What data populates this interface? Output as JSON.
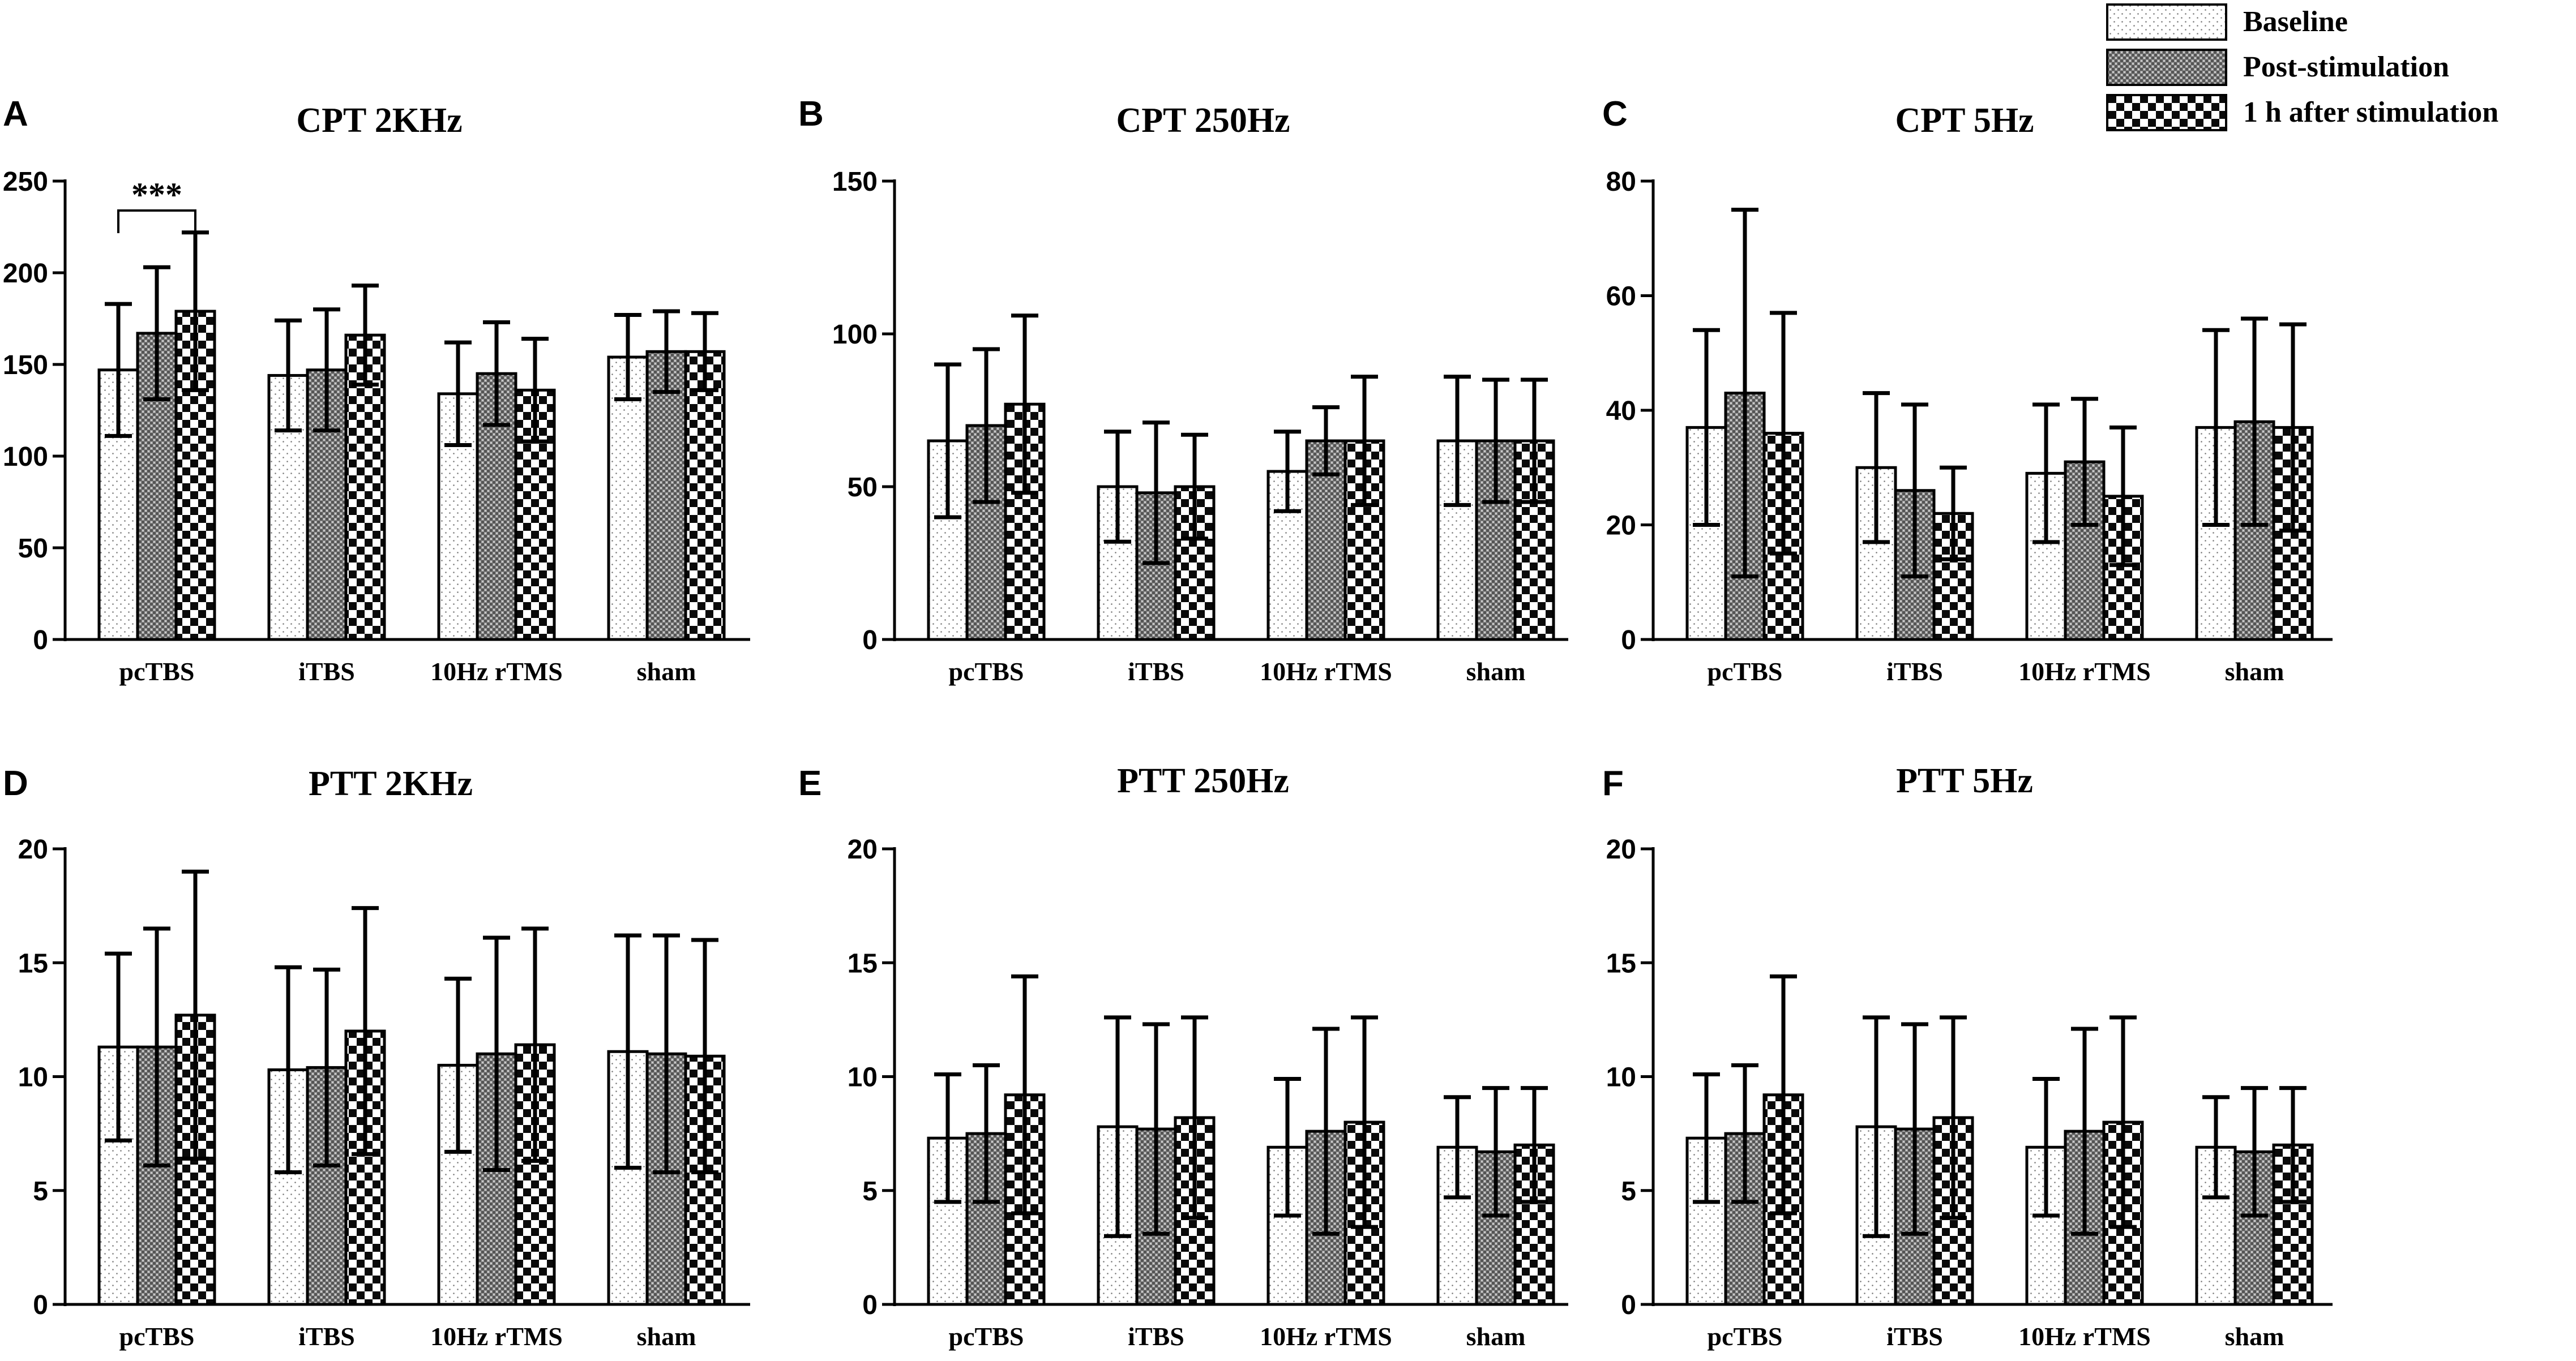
{
  "legend": [
    "Baseline",
    "Post-stimulation",
    "1 h after stimulation"
  ],
  "chart_data": [
    {
      "panel": "A",
      "title": "CPT 2KHz",
      "type": "bar",
      "categories": [
        "pcTBS",
        "iTBS",
        "10Hz rTMS",
        "sham"
      ],
      "yticks": [
        "0",
        "50",
        "100",
        "150",
        "200",
        "250"
      ],
      "ylim": [
        0,
        250
      ],
      "series": [
        {
          "name": "Baseline",
          "values": [
            147,
            144,
            134,
            154
          ],
          "errors": [
            36,
            30,
            28,
            23
          ]
        },
        {
          "name": "Post-stimulation",
          "values": [
            167,
            147,
            145,
            157
          ],
          "errors": [
            36,
            33,
            28,
            22
          ]
        },
        {
          "name": "1 h after stimulation",
          "values": [
            179,
            166,
            136,
            157
          ],
          "errors": [
            43,
            27,
            28,
            21
          ]
        }
      ],
      "annotation": {
        "label": "***",
        "between": "pcTBS Baseline vs 1 h after stimulation"
      }
    },
    {
      "panel": "B",
      "title": "CPT 250Hz",
      "type": "bar",
      "categories": [
        "pcTBS",
        "iTBS",
        "10Hz rTMS",
        "sham"
      ],
      "yticks": [
        "0",
        "50",
        "100",
        "150"
      ],
      "ylim": [
        0,
        150
      ],
      "series": [
        {
          "name": "Baseline",
          "values": [
            65,
            50,
            55,
            65
          ],
          "errors": [
            25,
            18,
            13,
            21
          ]
        },
        {
          "name": "Post-stimulation",
          "values": [
            70,
            48,
            65,
            65
          ],
          "errors": [
            25,
            23,
            11,
            20
          ]
        },
        {
          "name": "1 h after stimulation",
          "values": [
            77,
            50,
            65,
            65
          ],
          "errors": [
            29,
            17,
            21,
            20
          ]
        }
      ]
    },
    {
      "panel": "C",
      "title": "CPT 5Hz",
      "type": "bar",
      "categories": [
        "pcTBS",
        "iTBS",
        "10Hz rTMS",
        "sham"
      ],
      "yticks": [
        "0",
        "20",
        "40",
        "60",
        "80"
      ],
      "ylim": [
        0,
        80
      ],
      "series": [
        {
          "name": "Baseline",
          "values": [
            37,
            30,
            29,
            37
          ],
          "errors": [
            17,
            13,
            12,
            17
          ]
        },
        {
          "name": "Post-stimulation",
          "values": [
            43,
            26,
            31,
            38
          ],
          "errors": [
            32,
            15,
            11,
            18
          ]
        },
        {
          "name": "1 h after stimulation",
          "values": [
            36,
            22,
            25,
            37
          ],
          "errors": [
            21,
            8,
            12,
            18
          ]
        }
      ]
    },
    {
      "panel": "D",
      "title": "PTT 2KHz",
      "type": "bar",
      "categories": [
        "pcTBS",
        "iTBS",
        "10Hz rTMS",
        "sham"
      ],
      "yticks": [
        "0",
        "5",
        "10",
        "15",
        "20"
      ],
      "ylim": [
        0,
        20
      ],
      "series": [
        {
          "name": "Baseline",
          "values": [
            11.3,
            10.3,
            10.5,
            11.1
          ],
          "errors": [
            4.1,
            4.5,
            3.8,
            5.1
          ]
        },
        {
          "name": "Post-stimulation",
          "values": [
            11.3,
            10.4,
            11.0,
            11.0
          ],
          "errors": [
            5.2,
            4.3,
            5.1,
            5.2
          ]
        },
        {
          "name": "1 h after stimulation",
          "values": [
            12.7,
            12.0,
            11.4,
            10.9
          ],
          "errors": [
            6.3,
            5.4,
            5.1,
            5.1
          ]
        }
      ]
    },
    {
      "panel": "E",
      "title": "PTT 250Hz",
      "type": "bar",
      "categories": [
        "pcTBS",
        "iTBS",
        "10Hz rTMS",
        "sham"
      ],
      "yticks": [
        "0",
        "5",
        "10",
        "15",
        "20"
      ],
      "ylim": [
        0,
        20
      ],
      "series": [
        {
          "name": "Baseline",
          "values": [
            7.3,
            7.8,
            6.9,
            6.9
          ],
          "errors": [
            2.8,
            4.8,
            3.0,
            2.2
          ]
        },
        {
          "name": "Post-stimulation",
          "values": [
            7.5,
            7.7,
            7.6,
            6.7
          ],
          "errors": [
            3.0,
            4.6,
            4.5,
            2.8
          ]
        },
        {
          "name": "1 h after stimulation",
          "values": [
            9.2,
            8.2,
            8.0,
            7.0
          ],
          "errors": [
            5.2,
            4.4,
            4.6,
            2.5
          ]
        }
      ]
    },
    {
      "panel": "F",
      "title": "PTT 5Hz",
      "type": "bar",
      "categories": [
        "pcTBS",
        "iTBS",
        "10Hz rTMS",
        "sham"
      ],
      "yticks": [
        "0",
        "5",
        "10",
        "15",
        "20"
      ],
      "ylim": [
        0,
        20
      ],
      "series": [
        {
          "name": "Baseline",
          "values": [
            7.3,
            7.8,
            6.9,
            6.9
          ],
          "errors": [
            2.8,
            4.8,
            3.0,
            2.2
          ]
        },
        {
          "name": "Post-stimulation",
          "values": [
            7.5,
            7.7,
            7.6,
            6.7
          ],
          "errors": [
            3.0,
            4.6,
            4.5,
            2.8
          ]
        },
        {
          "name": "1 h after stimulation",
          "values": [
            9.2,
            8.2,
            8.0,
            7.0
          ],
          "errors": [
            5.2,
            4.4,
            4.6,
            2.5
          ]
        }
      ]
    }
  ]
}
